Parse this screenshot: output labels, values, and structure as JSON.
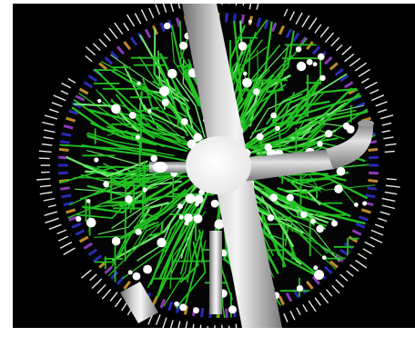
{
  "scene": {
    "colors": {
      "background": "#000000",
      "frame": "#ffffff",
      "tubes": "#22c022",
      "tubes_light": "#6fe86f",
      "pipe": "#bdbdbd",
      "pipe_highlight": "#f2f2f2",
      "hub": "#ffffff",
      "nodes": "#ffffff",
      "rim_blue": "#2a2ab8",
      "rim_purple": "#8a3ab8",
      "rim_orange": "#c08a2a",
      "outer_marks": "#e8e8e8"
    }
  }
}
